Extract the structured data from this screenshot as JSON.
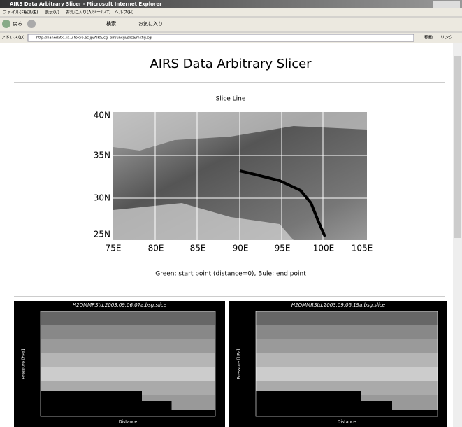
{
  "window": {
    "title": "AIRS Data Arbitrary Slicer - Microsoft Internet Explorer"
  },
  "menu": [
    "ファイル(F)",
    "編集(E)",
    "表示(V)",
    "お気に入り(A)",
    "ツール(T)",
    "ヘルプ(H)"
  ],
  "toolbar": {
    "back": "戻る",
    "search": "検索",
    "favorites": "お気に入り"
  },
  "address": {
    "label": "アドレス(D)",
    "url": "http://hanedatkl.iis.u-tokyo.ac.jp/AIRS/cgi-bin/uncgi/slice/mkfig.cgi",
    "go": "移動",
    "links": "リンク"
  },
  "page": {
    "title": "AIRS Data Arbitrary Slicer",
    "map": {
      "title": "Slice Line",
      "lon_labels": [
        "75E",
        "80E",
        "85E",
        "90E",
        "95E",
        "100E",
        "105E"
      ],
      "lat_labels": [
        "40N",
        "35N",
        "30N",
        "25N"
      ],
      "caption": "Green; start point (distance=0), Bule; end point"
    },
    "plots": [
      {
        "title": "H2OMMRStd.2003.09.06.07a.bsg.slice",
        "y_label": "Pressure [hPa]",
        "x_label": "Distance"
      },
      {
        "title": "H2OMMRStd.2003.09.06.19a.bsg.slice",
        "y_label": "Pressure [hPa]",
        "x_label": "Distance"
      }
    ]
  }
}
